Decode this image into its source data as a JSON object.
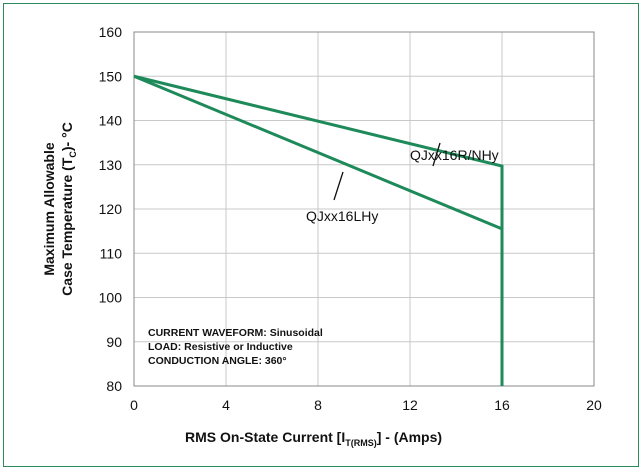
{
  "chart_data": {
    "type": "line",
    "xlabel_main": "RMS On-State  Current [I",
    "xlabel_sub": "T(RMS)",
    "xlabel_end": "] - (Amps)",
    "ylabel_line1": "Maximum Allowable",
    "ylabel_line2_main": "Case Temperature (T",
    "ylabel_line2_sub": "C",
    "ylabel_line2_end": ")- °C",
    "xlim": [
      0,
      20
    ],
    "ylim": [
      80,
      160
    ],
    "xticks": [
      0,
      4,
      8,
      12,
      16,
      20
    ],
    "yticks": [
      80,
      90,
      100,
      110,
      120,
      130,
      140,
      150,
      160
    ],
    "grid": true,
    "series": [
      {
        "name": "QJxx16R/NHy",
        "x": [
          0,
          16,
          16
        ],
        "y": [
          150,
          129.7,
          80
        ]
      },
      {
        "name": "QJxx16LHy",
        "x": [
          0,
          16,
          16
        ],
        "y": [
          150,
          115.5,
          80
        ]
      }
    ],
    "annotations": [
      "CURRENT WAVEFORM: Sinusoidal",
      "LOAD: Resistive or Inductive",
      "CONDUCTION ANGLE: 360°"
    ],
    "colors": {
      "series": "#1e8a5a",
      "frame": "#2a8a5c",
      "grid": "#c8c8c8",
      "axis": "#888888"
    }
  }
}
